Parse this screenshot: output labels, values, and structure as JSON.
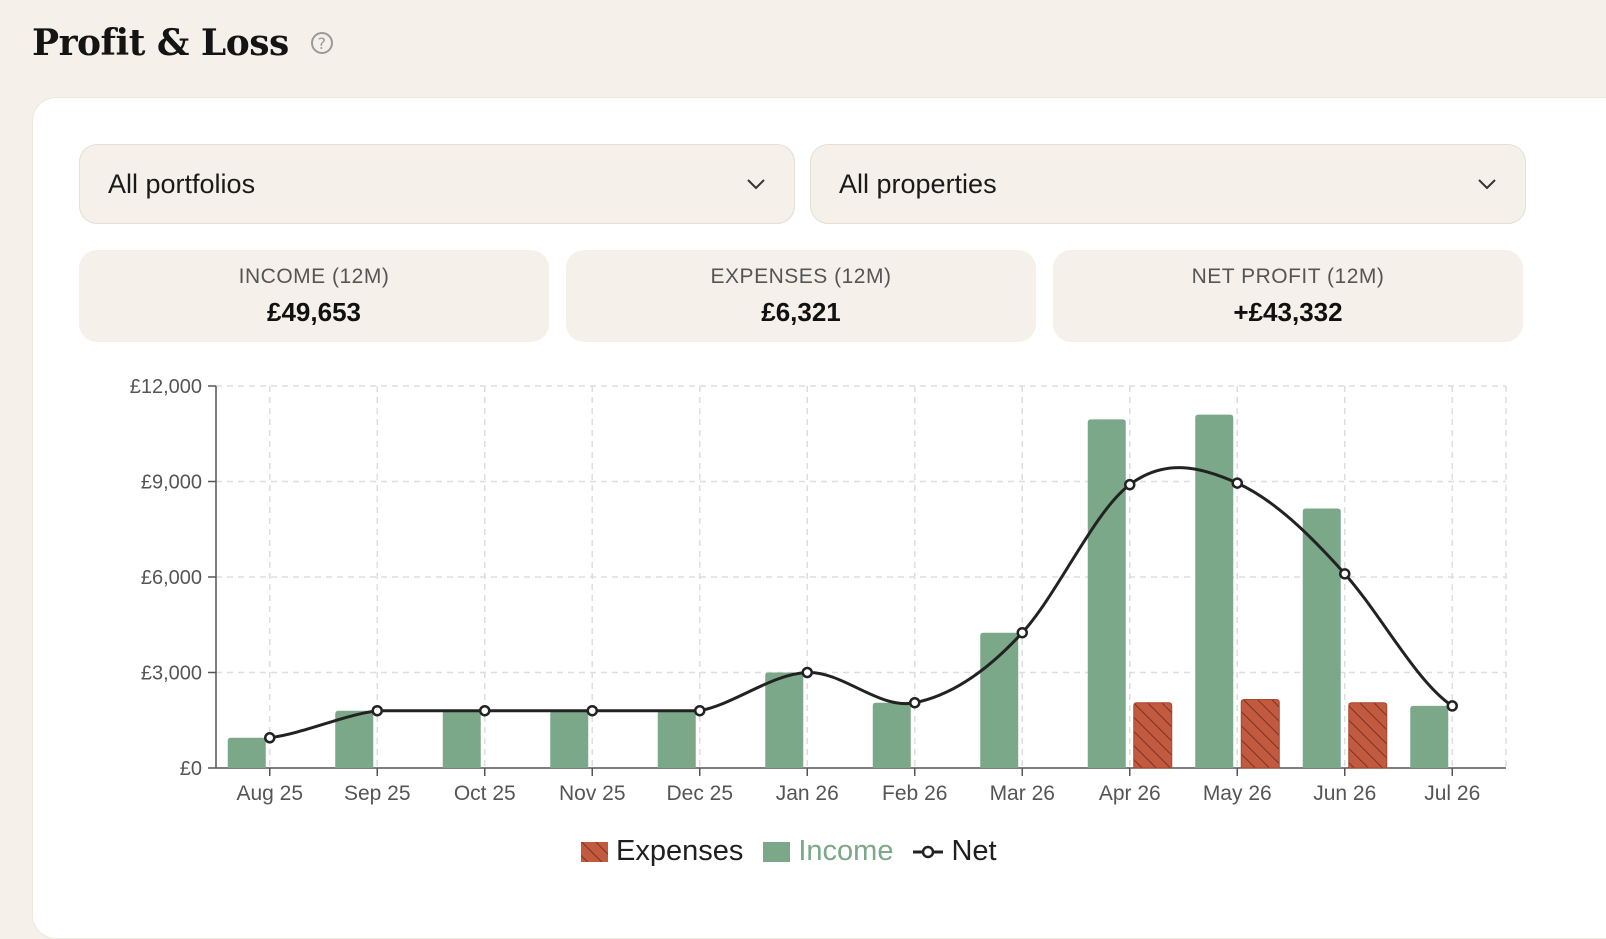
{
  "header": {
    "title": "Profit & Loss",
    "help_icon": "question-circle-icon"
  },
  "filters": {
    "portfolio": {
      "value": "All portfolios",
      "icon": "chevron-down-icon"
    },
    "property": {
      "value": "All properties",
      "icon": "chevron-down-icon"
    }
  },
  "stats": [
    {
      "label": "INCOME (12M)",
      "value": "£49,653"
    },
    {
      "label": "EXPENSES (12M)",
      "value": "£6,321"
    },
    {
      "label": "NET PROFIT (12M)",
      "value": "+£43,332"
    }
  ],
  "colors": {
    "income": "#7aa888",
    "expenses": "#c25a40",
    "net": "#222222",
    "grid": "#dedede"
  },
  "chart_data": {
    "type": "bar",
    "categories": [
      "Aug 25",
      "Sep 25",
      "Oct 25",
      "Nov 25",
      "Dec 25",
      "Jan 26",
      "Feb 26",
      "Mar 26",
      "Apr 26",
      "May 26",
      "Jun 26",
      "Jul 26"
    ],
    "series": [
      {
        "name": "Expenses",
        "type": "bar",
        "values": [
          0,
          0,
          0,
          0,
          0,
          0,
          0,
          0,
          2050,
          2150,
          2050,
          0
        ]
      },
      {
        "name": "Income",
        "type": "bar",
        "values": [
          950,
          1800,
          1800,
          1800,
          1800,
          3000,
          2050,
          4250,
          10950,
          11100,
          8150,
          1950
        ]
      },
      {
        "name": "Net",
        "type": "line",
        "values": [
          950,
          1800,
          1800,
          1800,
          1800,
          3000,
          2050,
          4250,
          8900,
          8950,
          6100,
          1950
        ]
      }
    ],
    "yticks": [
      "£0",
      "£3,000",
      "£6,000",
      "£9,000",
      "£12,000"
    ],
    "ylim": [
      0,
      12000
    ],
    "grid": true,
    "legend": "bottom-center"
  }
}
